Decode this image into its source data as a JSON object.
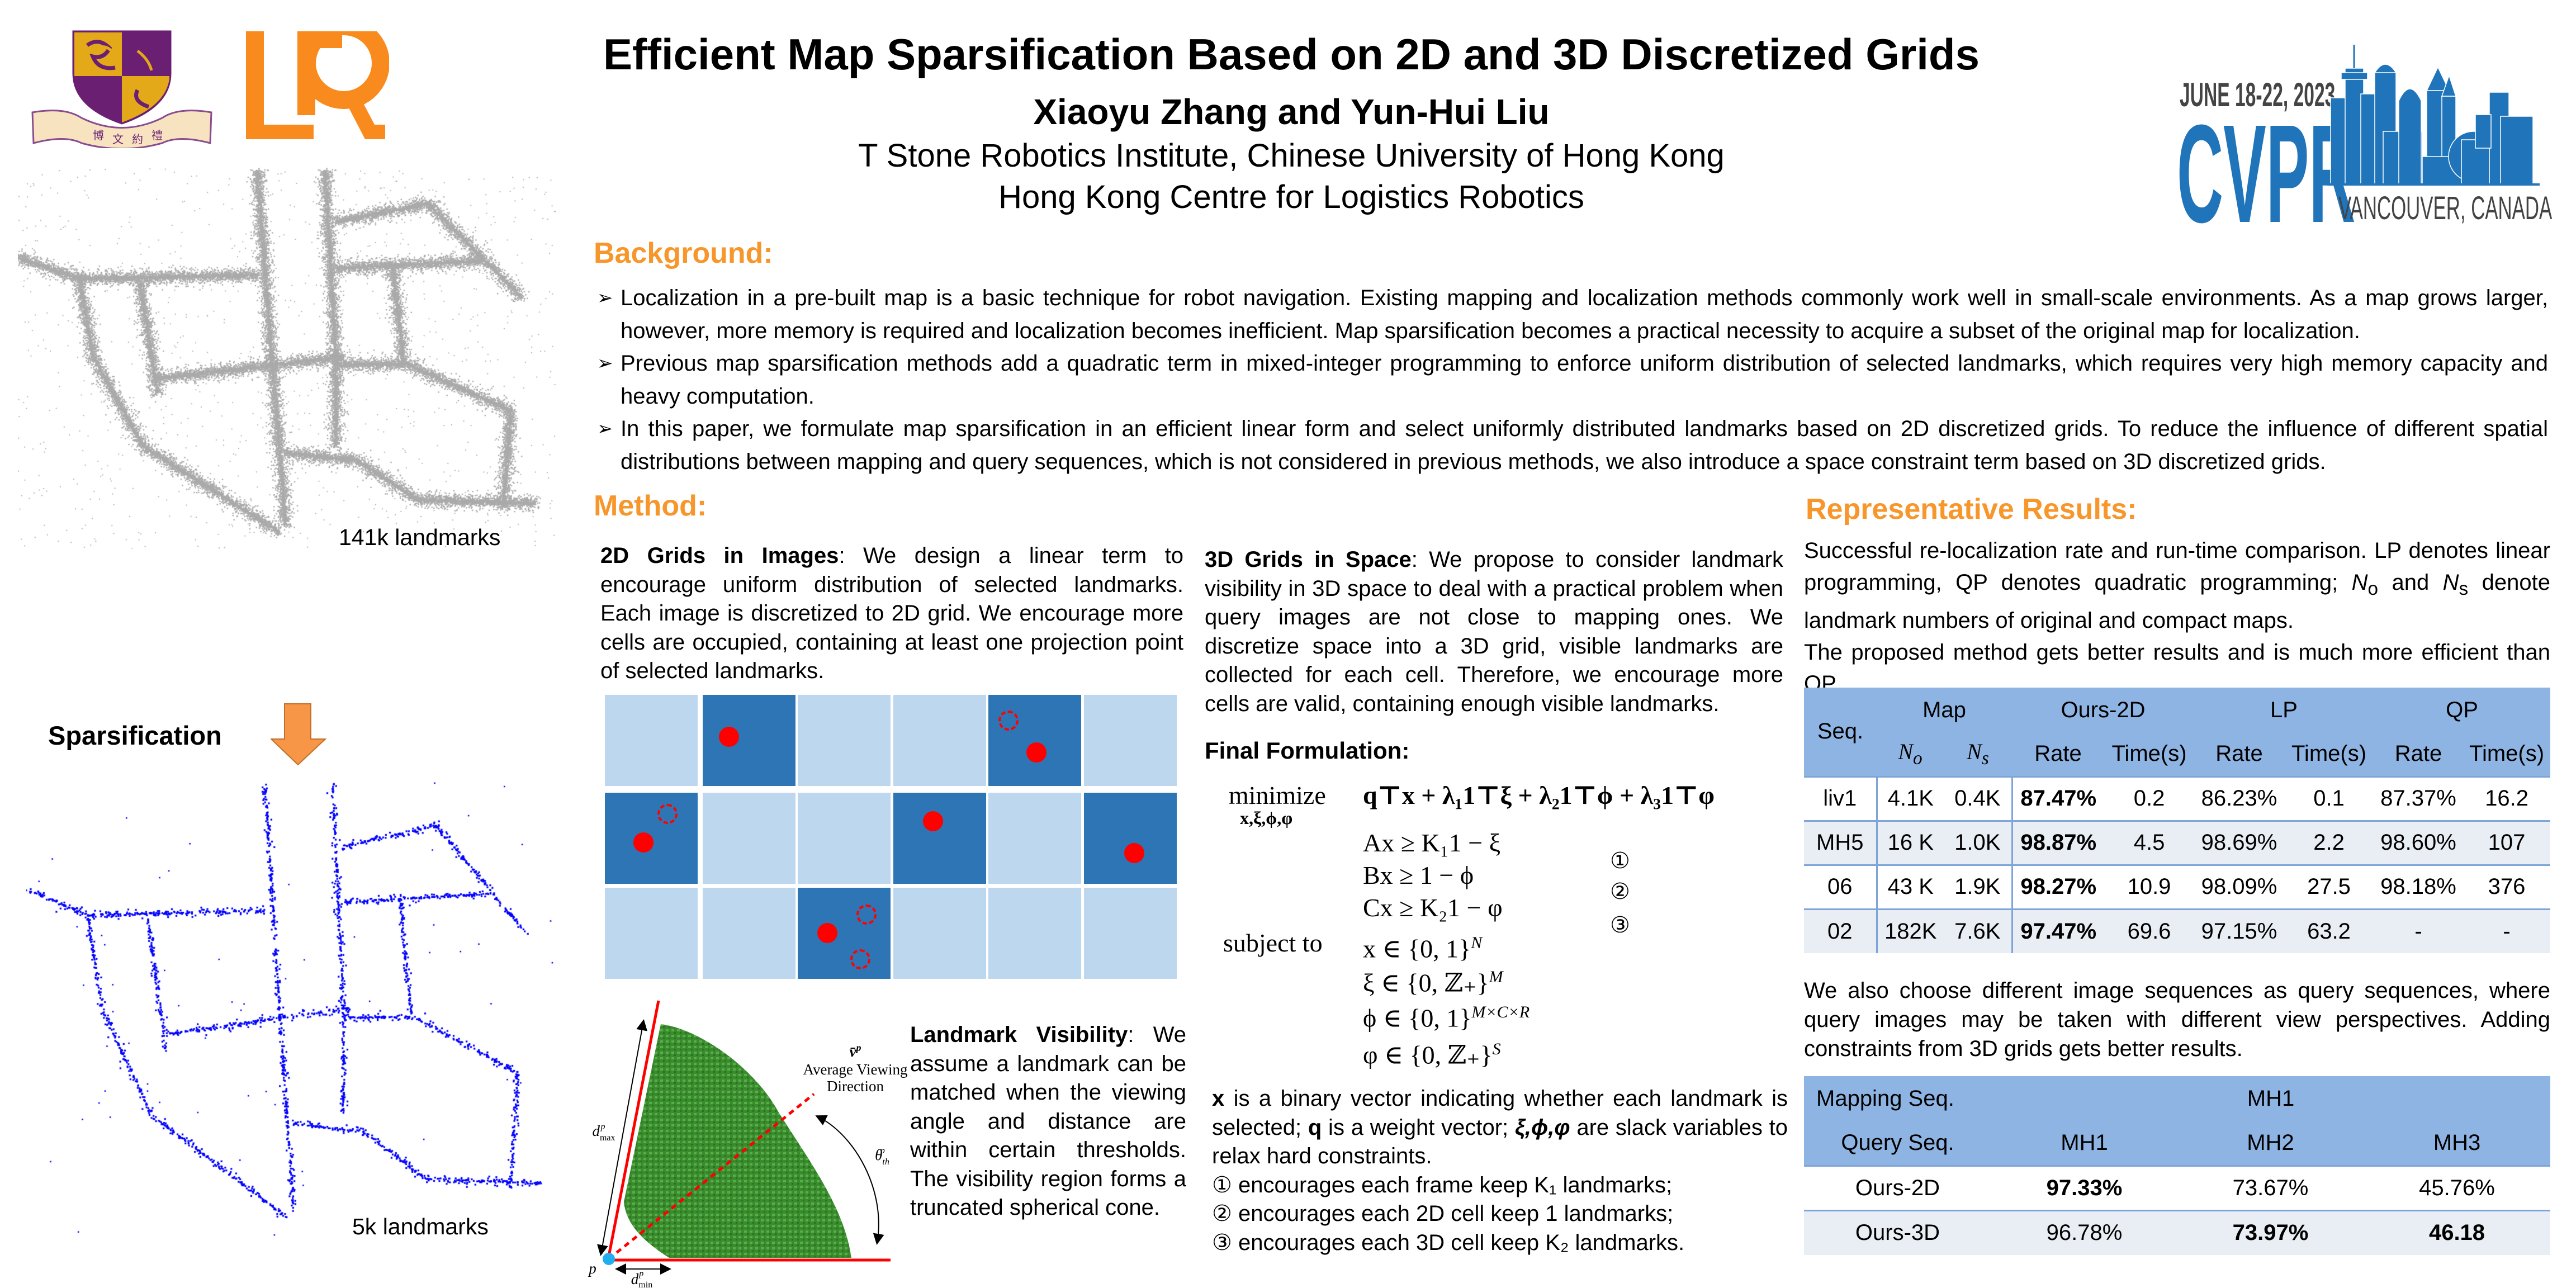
{
  "logos": {
    "cuhk_motto": "博文約禮",
    "lab": "LR"
  },
  "title": "Efficient Map Sparsification Based on 2D and 3D Discretized Grids",
  "authors": "Xiaoyu Zhang and Yun-Hui Liu",
  "affiliations": [
    "T Stone Robotics Institute, Chinese University of Hong Kong",
    "Hong Kong Centre for Logistics Robotics"
  ],
  "cvpr": {
    "dates": "JUNE 18-22, 2023",
    "name": "CVPR",
    "location": "VANCOUVER, CANADA"
  },
  "left_panel": {
    "original_label": "141k landmarks",
    "arrow_label": "Sparsification",
    "sparse_label": "5k landmarks"
  },
  "background": {
    "heading": "Background:",
    "bullet_icon": "➢",
    "bullets": [
      "Localization in a pre-built map is a basic technique for robot navigation. Existing mapping and localization methods commonly work well in small-scale environments. As a map grows larger, however, more memory is required and localization becomes inefficient. Map sparsification becomes a practical necessity to acquire a subset of the original map for localization.",
      "Previous map sparsification methods add a quadratic term in mixed-integer programming to enforce uniform distribution of selected landmarks, which requires very high memory capacity and heavy computation.",
      "In this paper, we formulate map sparsification in an efficient linear form and select uniformly distributed landmarks based on 2D discretized grids. To reduce the influence of different spatial distributions between mapping and query sequences, which is not considered in previous methods, we also introduce a space constraint term based on 3D discretized grids."
    ]
  },
  "method": {
    "heading": "Method:",
    "grids2d": {
      "title": "2D Grids in Images",
      "body": ": We design a linear term to encourage uniform distribution of selected landmarks. Each image is discretized to 2D grid. We encourage more cells are occupied, containing at least one projection point of selected landmarks."
    },
    "grids3d": {
      "title": "3D Grids in Space",
      "body": ": We propose to consider landmark visibility in 3D space to deal with a practical problem when query images are not close to mapping ones. We discretize space into a 3D grid, visible landmarks are collected for each cell.  Therefore, we encourage more cells are valid, containing enough visible landmarks."
    },
    "visibility": {
      "title": "Landmark Visibility",
      "body": ": We assume a landmark can be matched when the viewing angle and distance are within certain thresholds. The visibility region forms a truncated spherical cone."
    },
    "figure_labels": {
      "vbar": "v̄",
      "vbar_sup": "p",
      "avg1": "Average Viewing",
      "avg2": "Direction",
      "theta": "θ",
      "theta_sub": "th",
      "theta_sup": "p",
      "dmax": "d",
      "dmax_sub": "max",
      "dmin": "d",
      "dmin_sub": "min",
      "sup": "p",
      "point": "p"
    },
    "formula": {
      "heading": "Final Formulation:",
      "minimize": "minimize",
      "minimize_vars": "x,ξ,ϕ,φ",
      "objective": "q⊤x + λ₁1⊤ξ + λ₂1⊤ϕ + λ₃1⊤φ",
      "subject_to": "subject to",
      "constraints": [
        "Ax ≥ K₁1 − ξ",
        "Bx ≥ 1 − ϕ",
        "Cx ≥ K₂1 − φ"
      ],
      "domains": [
        {
          "base": "x ∈ {0, 1}",
          "exp": "N"
        },
        {
          "base": "ξ ∈ {0, ℤ₊}",
          "exp": "M"
        },
        {
          "base": "ϕ ∈ {0, 1}",
          "exp": "M×C×R"
        },
        {
          "base": "φ ∈ {0, ℤ₊}",
          "exp": "S"
        }
      ],
      "markers": [
        "①",
        "②",
        "③"
      ]
    },
    "notes": {
      "parts": [
        "x",
        " is a binary vector indicating whether each landmark is selected; ",
        "q",
        " is a weight vector; ",
        "ξ,ϕ,φ",
        " are slack variables to relax hard constraints."
      ],
      "items": [
        "① encourages each frame keep K₁ landmarks;",
        "② encourages each 2D cell keep 1 landmarks;",
        "③ encourages each 3D cell keep K₂ landmarks."
      ]
    }
  },
  "results": {
    "heading": "Representative Results:",
    "intro_parts": [
      "Successful re-localization rate and run-time comparison. LP denotes linear programming, QP denotes quadratic programming; ",
      " and ",
      " denote landmark numbers of original and compact maps."
    ],
    "No": {
      "base": "N",
      "sub": "o"
    },
    "Ns": {
      "base": "N",
      "sub": "s"
    },
    "intro2": "The proposed method gets better results and is much more efficient than QP.",
    "table1": {
      "seq_header": "Seq.",
      "group_headers": [
        "Map",
        "Ours-2D",
        "LP",
        "QP"
      ],
      "sub_headers": [
        {
          "base": "N",
          "sub": "o"
        },
        {
          "base": "N",
          "sub": "s"
        },
        "Rate",
        "Time(s)",
        "Rate",
        "Time(s)",
        "Rate",
        "Time(s)"
      ],
      "rows": [
        [
          "liv1",
          "4.1K",
          "0.4K",
          "87.47%",
          "0.2",
          "86.23%",
          "0.1",
          "87.37%",
          "16.2"
        ],
        [
          "MH5",
          "16 K",
          "1.0K",
          "98.87%",
          "4.5",
          "98.69%",
          "2.2",
          "98.60%",
          "107"
        ],
        [
          "06",
          "43 K",
          "1.9K",
          "98.27%",
          "10.9",
          "98.09%",
          "27.5",
          "98.18%",
          "376"
        ],
        [
          "02",
          "182K",
          "7.6K",
          "97.47%",
          "69.6",
          "97.15%",
          "63.2",
          "-",
          "-"
        ]
      ],
      "bold_cells": [
        [
          0,
          3
        ],
        [
          1,
          3
        ],
        [
          2,
          3
        ],
        [
          3,
          3
        ]
      ]
    },
    "query_text": "We  also choose different image sequences as query sequences, where query images may be taken with different view perspectives. Adding constraints from 3D grids gets better results.",
    "table2": {
      "mapping_label": "Mapping Seq.",
      "mapping_value": "MH1",
      "query_label": "Query Seq.",
      "query_values": [
        "MH1",
        "MH2",
        "MH3"
      ],
      "rows": [
        [
          "Ours-2D",
          "97.33%",
          "73.67%",
          "45.76%"
        ],
        [
          "Ours-3D",
          "96.78%",
          "73.97%",
          "46.18"
        ]
      ],
      "bold_cells": [
        [
          0,
          1
        ],
        [
          1,
          2
        ],
        [
          1,
          3
        ]
      ]
    }
  },
  "colors": {
    "heading": "#F7962A",
    "grid_light": "#BDD7EE",
    "grid_dark": "#2E75B6",
    "table_header": "#8EB4E3",
    "cvpr_blue": "#1F74BA",
    "sparse_points": "#0000FF",
    "dense_points": "#AAAAAA"
  }
}
